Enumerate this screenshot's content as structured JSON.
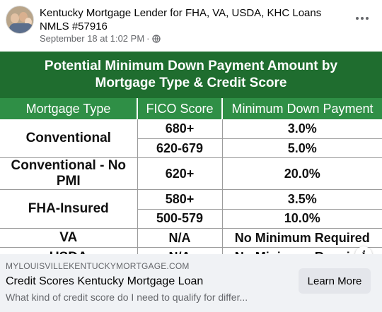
{
  "post": {
    "page_name": "Kentucky Mortgage Lender for FHA, VA, USDA, KHC Loans NMLS #57916",
    "timestamp": "September 18 at 1:02 PM",
    "separator": "·",
    "privacy_icon": "globe-icon",
    "more_icon": "more-options-icon"
  },
  "graphic": {
    "title_line1": "Potential Minimum Down Payment Amount by",
    "title_line2": "Mortgage Type & Credit Score",
    "headers": [
      "Mortgage Type",
      "FICO Score",
      "Minimum Down Payment"
    ],
    "rows": [
      {
        "type": "Conventional",
        "fico": "680+",
        "down": "3.0%"
      },
      {
        "type": "",
        "fico": "620-679",
        "down": "5.0%"
      },
      {
        "type": "Conventional - No PMI",
        "fico": "620+",
        "down": "20.0%"
      },
      {
        "type": "FHA-Insured",
        "fico": "580+",
        "down": "3.5%"
      },
      {
        "type": "",
        "fico": "500-579",
        "down": "10.0%"
      },
      {
        "type": "VA",
        "fico": "N/A",
        "down": "No Minimum Required"
      },
      {
        "type": "USDA",
        "fico": "N/A",
        "down": "No Minimum Required"
      }
    ],
    "colors": {
      "title_bg": "#1f6d2f",
      "header_bg": "#2f8f46"
    }
  },
  "info_icon": "i",
  "link_preview": {
    "domain": "MYLOUISVILLEKENTUCKYMORTGAGE.COM",
    "headline": "Credit Scores Kentucky Mortgage Loan",
    "description": "What kind of credit score do I need to qualify for differ...",
    "cta": "Learn More"
  }
}
